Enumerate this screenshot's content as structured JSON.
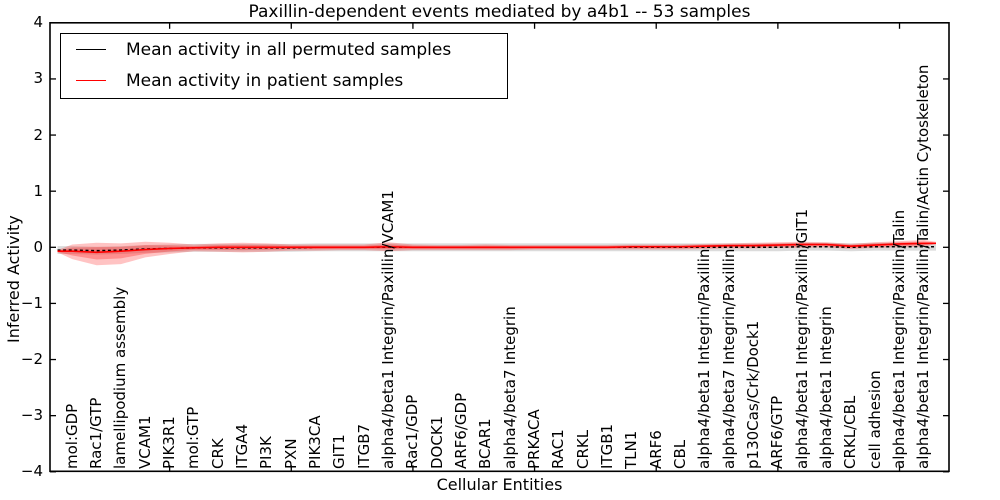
{
  "chart_data": {
    "type": "line",
    "title": "Paxillin-dependent events mediated by a4b1 -- 53 samples",
    "xlabel": "Cellular Entities",
    "ylabel": "Inferred Activity",
    "ylim": [
      -4,
      4
    ],
    "yticks": [
      4,
      3,
      2,
      1,
      0,
      -1,
      -2,
      -3,
      -4
    ],
    "ytick_labels": [
      "4",
      "3",
      "2",
      "1",
      "0",
      "−1",
      "−2",
      "−3",
      "−4"
    ],
    "xtick_positions": [
      5,
      10,
      15,
      20,
      25,
      30,
      35
    ],
    "grid": false,
    "legend_position": "upper left",
    "categories": [
      "mol:GDP",
      "Rac1/GTP",
      "lamellipodium assembly",
      "VCAM1",
      "PIK3R1",
      "mol:GTP",
      "CRK",
      "ITGA4",
      "PI3K",
      "PXN",
      "PIK3CA",
      "GIT1",
      "ITGB7",
      "alpha4/beta1 Integrin/Paxillin/VCAM1",
      "Rac1/GDP",
      "DOCK1",
      "ARF6/GDP",
      "BCAR1",
      "alpha4/beta7 Integrin",
      "PRKACA",
      "RAC1",
      "CRKL",
      "ITGB1",
      "TLN1",
      "ARF6",
      "CBL",
      "alpha4/beta1 Integrin/Paxillin",
      "alpha4/beta7 Integrin/Paxillin",
      "p130Cas/Crk/Dock1",
      "ARF6/GTP",
      "alpha4/beta1 Integrin/Paxillin/GIT1",
      "alpha4/beta1 Integrin",
      "CRKL/CBL",
      "cell adhesion",
      "alpha4/beta1 Integrin/Paxillin/Talin",
      "alpha4/beta1 Integrin/Paxillin/Talin/Actin Cytoskeleton"
    ],
    "series": [
      {
        "name": "Mean activity in all permuted samples",
        "color": "#000000",
        "style": "dashed",
        "values": [
          -0.05,
          -0.06,
          -0.05,
          -0.03,
          -0.02,
          -0.01,
          -0.01,
          -0.01,
          -0.01,
          -0.01,
          0,
          0,
          0,
          0,
          0,
          0,
          0,
          0,
          0,
          0,
          0,
          0,
          0,
          0,
          0,
          0,
          0,
          0,
          0,
          0,
          0.01,
          0.01,
          0,
          0.01,
          0.01,
          0.01
        ]
      },
      {
        "name": "Mean activity in patient samples",
        "color": "#ff0000",
        "style": "solid",
        "values": [
          -0.07,
          -0.09,
          -0.07,
          -0.04,
          -0.02,
          -0.01,
          0,
          0,
          0,
          0,
          0,
          0,
          0,
          0.01,
          0,
          0,
          0,
          0,
          0,
          0,
          0,
          0,
          0,
          0.01,
          0.01,
          0.01,
          0.02,
          0.03,
          0.03,
          0.04,
          0.05,
          0.05,
          0.02,
          0.04,
          0.06,
          0.07
        ]
      }
    ],
    "bands": [
      {
        "name": "patient samples spread",
        "color": "#ff2222",
        "upper": [
          0.05,
          0.08,
          0.07,
          0.1,
          0.08,
          0.05,
          0.07,
          0.08,
          0.07,
          0.05,
          0.05,
          0.05,
          0.05,
          0.09,
          0.05,
          0.04,
          0.04,
          0.05,
          0.04,
          0.04,
          0.04,
          0.04,
          0.04,
          0.05,
          0.05,
          0.05,
          0.06,
          0.07,
          0.08,
          0.09,
          0.1,
          0.09,
          0.06,
          0.09,
          0.11,
          0.13
        ],
        "lower": [
          -0.21,
          -0.32,
          -0.3,
          -0.18,
          -0.12,
          -0.07,
          -0.08,
          -0.09,
          -0.08,
          -0.06,
          -0.06,
          -0.05,
          -0.05,
          -0.07,
          -0.05,
          -0.05,
          -0.05,
          -0.05,
          -0.05,
          -0.04,
          -0.04,
          -0.04,
          -0.04,
          -0.04,
          -0.04,
          -0.04,
          -0.03,
          -0.02,
          -0.02,
          -0.01,
          -0.01,
          0.0,
          -0.03,
          -0.01,
          0.0,
          0.01
        ]
      },
      {
        "name": "permuted samples spread",
        "color": "#888888",
        "halfwidth": 0.07
      }
    ]
  }
}
